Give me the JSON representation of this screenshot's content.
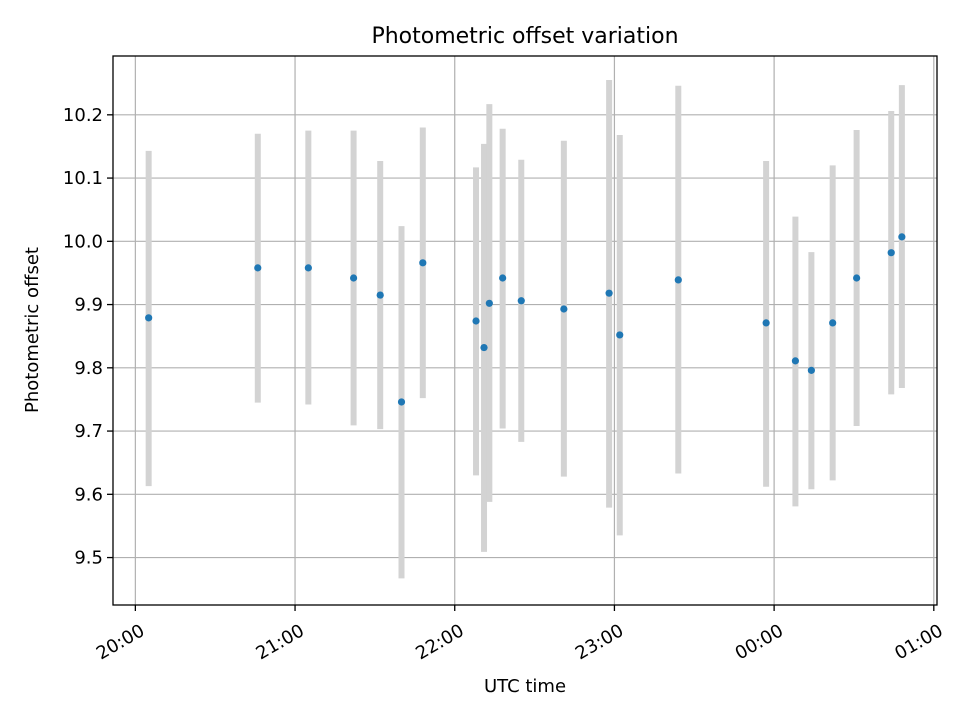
{
  "chart_data": {
    "type": "scatter",
    "title": "Photometric offset variation",
    "xlabel": "UTC time",
    "ylabel": "Photometric offset",
    "x_tick_labels": [
      "20:00",
      "21:00",
      "22:00",
      "23:00",
      "00:00",
      "01:00"
    ],
    "x_tick_hours": [
      20,
      21,
      22,
      23,
      24,
      25
    ],
    "y_ticks": [
      9.5,
      9.6,
      9.7,
      9.8,
      9.9,
      10.0,
      10.1,
      10.2
    ],
    "y_tick_labels": [
      "9.5",
      "9.6",
      "9.7",
      "9.8",
      "9.9",
      "10.0",
      "10.1",
      "10.2"
    ],
    "xlim_hours": [
      19.86,
      25.02
    ],
    "ylim": [
      9.425,
      10.293
    ],
    "grid": true,
    "colors": {
      "point": "#1f77b4",
      "errorbar": "#d3d3d3"
    },
    "series": [
      {
        "points": [
          {
            "x": "20:05",
            "y": 9.879,
            "err_low": 9.613,
            "err_high": 10.143
          },
          {
            "x": "20:46",
            "y": 9.958,
            "err_low": 9.745,
            "err_high": 10.17
          },
          {
            "x": "21:05",
            "y": 9.958,
            "err_low": 9.742,
            "err_high": 10.175
          },
          {
            "x": "21:22",
            "y": 9.942,
            "err_low": 9.709,
            "err_high": 10.175
          },
          {
            "x": "21:32",
            "y": 9.915,
            "err_low": 9.703,
            "err_high": 10.127
          },
          {
            "x": "21:40",
            "y": 9.746,
            "err_low": 9.467,
            "err_high": 10.024
          },
          {
            "x": "21:48",
            "y": 9.966,
            "err_low": 9.752,
            "err_high": 10.18
          },
          {
            "x": "22:08",
            "y": 9.874,
            "err_low": 9.63,
            "err_high": 10.117
          },
          {
            "x": "22:11",
            "y": 9.832,
            "err_low": 9.509,
            "err_high": 10.154
          },
          {
            "x": "22:13",
            "y": 9.902,
            "err_low": 9.588,
            "err_high": 10.217
          },
          {
            "x": "22:18",
            "y": 9.942,
            "err_low": 9.704,
            "err_high": 10.178
          },
          {
            "x": "22:25",
            "y": 9.906,
            "err_low": 9.683,
            "err_high": 10.129
          },
          {
            "x": "22:41",
            "y": 9.893,
            "err_low": 9.628,
            "err_high": 10.159
          },
          {
            "x": "22:58",
            "y": 9.918,
            "err_low": 9.579,
            "err_high": 10.255
          },
          {
            "x": "23:02",
            "y": 9.852,
            "err_low": 9.535,
            "err_high": 10.168
          },
          {
            "x": "23:24",
            "y": 9.939,
            "err_low": 9.633,
            "err_high": 10.246
          },
          {
            "x": "23:57",
            "y": 9.871,
            "err_low": 9.612,
            "err_high": 10.127
          },
          {
            "x": "00:08",
            "y": 9.811,
            "err_low": 9.581,
            "err_high": 10.039
          },
          {
            "x": "00:14",
            "y": 9.796,
            "err_low": 9.608,
            "err_high": 9.983
          },
          {
            "x": "00:22",
            "y": 9.871,
            "err_low": 9.622,
            "err_high": 10.12
          },
          {
            "x": "00:31",
            "y": 9.942,
            "err_low": 9.708,
            "err_high": 10.176
          },
          {
            "x": "00:44",
            "y": 9.982,
            "err_low": 9.758,
            "err_high": 10.206
          },
          {
            "x": "00:48",
            "y": 10.007,
            "err_low": 9.768,
            "err_high": 10.247
          }
        ]
      }
    ]
  }
}
